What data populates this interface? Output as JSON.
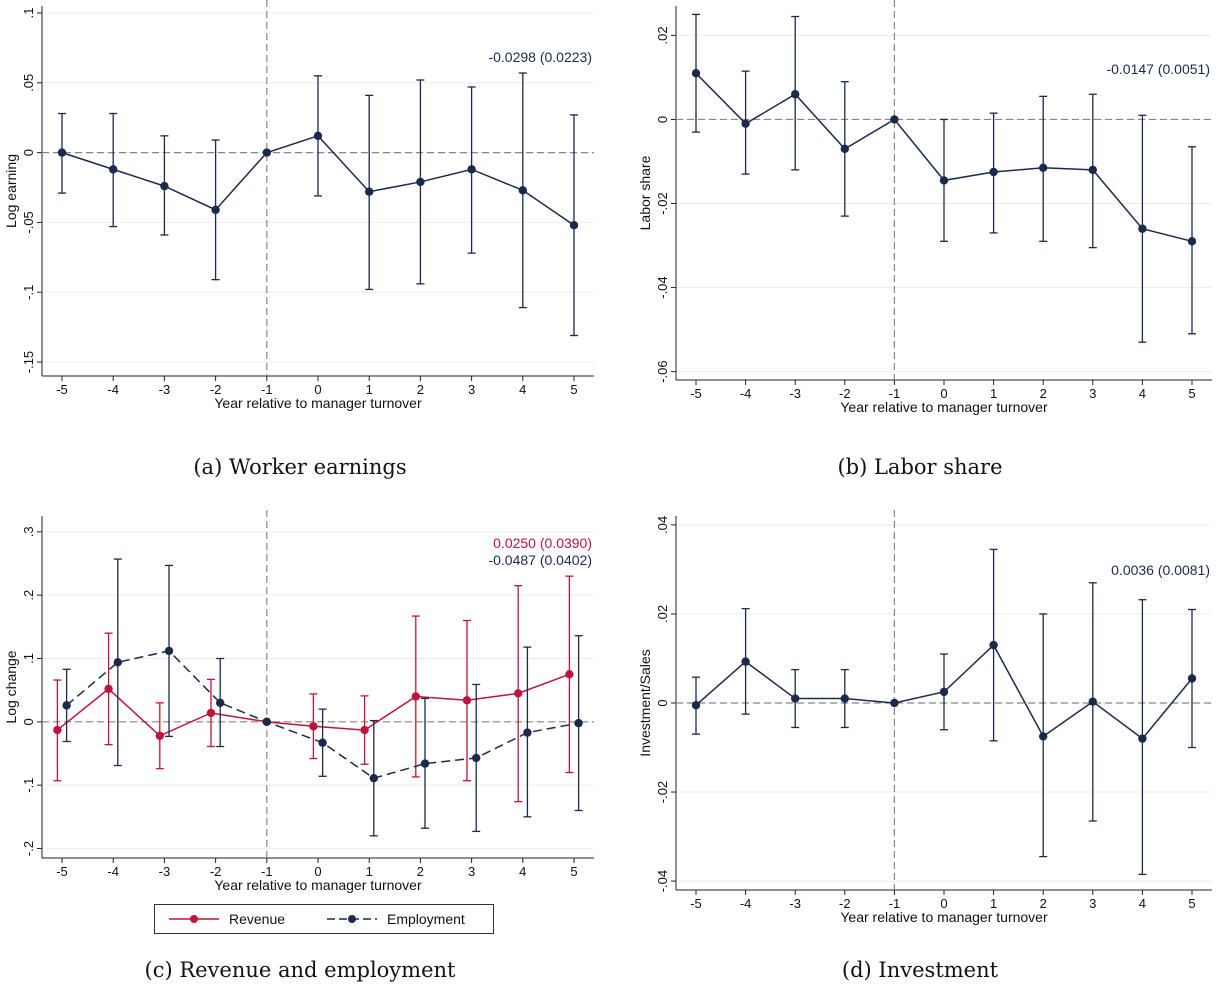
{
  "captions": [
    "(a) Worker earnings",
    "(b) Labor share",
    "(c) Revenue and employment",
    "(d) Investment"
  ],
  "colors": {
    "navy": "#1a2a4a",
    "red": "#c0143c",
    "ref": "#888888"
  },
  "legend": {
    "revenue": "Revenue",
    "employment": "Employment"
  },
  "chart_data": [
    {
      "type": "line",
      "title": "",
      "xlabel": "Year relative to manager turnover",
      "ylabel": "Log earning",
      "x": [
        -5,
        -4,
        -3,
        -2,
        -1,
        0,
        1,
        2,
        3,
        4,
        5
      ],
      "ylim": [
        -0.16,
        0.105
      ],
      "yticks": [
        0.1,
        0.05,
        0,
        -0.05,
        -0.1,
        -0.15
      ],
      "ytick_labels": [
        ".1",
        ".05",
        "0",
        "-.05",
        "-.1",
        "-.15"
      ],
      "xticks": [
        "-5",
        "-4",
        "-3",
        "-2",
        "-1",
        "0",
        "1",
        "2",
        "3",
        "4",
        "5"
      ],
      "vline": -1,
      "hline": 0,
      "annotations": [
        {
          "text": "-0.0298 (0.0223)",
          "color": "navy"
        }
      ],
      "series": [
        {
          "name": "",
          "color": "navy",
          "dash": false,
          "values": [
            0,
            -0.012,
            -0.024,
            -0.041,
            0,
            0.012,
            -0.028,
            -0.021,
            -0.012,
            -0.027,
            -0.052
          ],
          "ci_low": [
            -0.029,
            -0.053,
            -0.059,
            -0.091,
            0,
            -0.031,
            -0.098,
            -0.094,
            -0.072,
            -0.111,
            -0.131
          ],
          "ci_high": [
            0.028,
            0.028,
            0.012,
            0.009,
            0,
            0.055,
            0.041,
            0.052,
            0.047,
            0.057,
            0.027
          ]
        }
      ]
    },
    {
      "type": "line",
      "title": "",
      "xlabel": "Year relative to manager turnover",
      "ylabel": "Labor share",
      "x": [
        -5,
        -4,
        -3,
        -2,
        -1,
        0,
        1,
        2,
        3,
        4,
        5
      ],
      "ylim": [
        -0.062,
        0.027
      ],
      "yticks": [
        0.02,
        0,
        -0.02,
        -0.04,
        -0.06
      ],
      "ytick_labels": [
        ".02",
        "0",
        "-.02",
        "-.04",
        "-.06"
      ],
      "xticks": [
        "-5",
        "-4",
        "-3",
        "-2",
        "-1",
        "0",
        "1",
        "2",
        "3",
        "4",
        "5"
      ],
      "vline": -1,
      "hline": 0,
      "annotations": [
        {
          "text": "-0.0147 (0.0051)",
          "color": "navy"
        }
      ],
      "series": [
        {
          "name": "",
          "color": "navy",
          "dash": false,
          "values": [
            0.011,
            -0.001,
            0.006,
            -0.007,
            0,
            -0.0145,
            -0.0125,
            -0.0115,
            -0.012,
            -0.026,
            -0.029
          ],
          "ci_low": [
            -0.003,
            -0.013,
            -0.012,
            -0.023,
            0,
            -0.029,
            -0.027,
            -0.029,
            -0.0305,
            -0.053,
            -0.051
          ],
          "ci_high": [
            0.025,
            0.0115,
            0.0245,
            0.009,
            0,
            0,
            0.0015,
            0.0055,
            0.006,
            0.001,
            -0.0065
          ]
        }
      ]
    },
    {
      "type": "line",
      "title": "",
      "xlabel": "Year relative to manager turnover",
      "ylabel": "Log change",
      "x": [
        -5,
        -4,
        -3,
        -2,
        -1,
        0,
        1,
        2,
        3,
        4,
        5
      ],
      "ylim": [
        -0.215,
        0.325
      ],
      "yticks": [
        0.3,
        0.2,
        0.1,
        0,
        -0.1,
        -0.2
      ],
      "ytick_labels": [
        ".3",
        ".2",
        ".1",
        "0",
        "-.1",
        "-.2"
      ],
      "xticks": [
        "-5",
        "-4",
        "-3",
        "-2",
        "-1",
        "0",
        "1",
        "2",
        "3",
        "4",
        "5"
      ],
      "vline": -1,
      "hline": 0,
      "annotations": [
        {
          "text": "0.0250 (0.0390)",
          "color": "red"
        },
        {
          "text": "-0.0487 (0.0402)",
          "color": "navy"
        }
      ],
      "series": [
        {
          "name": "Revenue",
          "color": "red",
          "dash": false,
          "offset": -0.09,
          "values": [
            -0.013,
            0.052,
            -0.022,
            0.014,
            0,
            -0.007,
            -0.013,
            0.04,
            0.034,
            0.045,
            0.075
          ],
          "ci_low": [
            -0.093,
            -0.036,
            -0.074,
            -0.039,
            0,
            -0.058,
            -0.067,
            -0.087,
            -0.093,
            -0.126,
            -0.08
          ],
          "ci_high": [
            0.066,
            0.14,
            0.03,
            0.067,
            0,
            0.044,
            0.041,
            0.167,
            0.16,
            0.215,
            0.23
          ]
        },
        {
          "name": "Employment",
          "color": "navy",
          "dash": true,
          "offset": 0.09,
          "values": [
            0.026,
            0.094,
            0.112,
            0.03,
            0,
            -0.033,
            -0.089,
            -0.066,
            -0.057,
            -0.017,
            -0.002
          ],
          "ci_low": [
            -0.031,
            -0.069,
            -0.023,
            -0.039,
            0,
            -0.086,
            -0.18,
            -0.168,
            -0.173,
            -0.15,
            -0.14
          ],
          "ci_high": [
            0.083,
            0.257,
            0.247,
            0.1,
            0,
            0.02,
            0.002,
            0.037,
            0.059,
            0.118,
            0.136
          ]
        }
      ]
    },
    {
      "type": "line",
      "title": "",
      "xlabel": "Year relative to manager turnover",
      "ylabel": "Investment/Sales",
      "x": [
        -5,
        -4,
        -3,
        -2,
        -1,
        0,
        1,
        2,
        3,
        4,
        5
      ],
      "ylim": [
        -0.042,
        0.042
      ],
      "yticks": [
        0.04,
        0.02,
        0,
        -0.02,
        -0.04
      ],
      "ytick_labels": [
        ".04",
        ".02",
        "0",
        "-.02",
        "-.04"
      ],
      "xticks": [
        "-5",
        "-4",
        "-3",
        "-2",
        "-1",
        "0",
        "1",
        "2",
        "3",
        "4",
        "5"
      ],
      "vline": -1,
      "hline": 0,
      "annotations": [
        {
          "text": "0.0036 (0.0081)",
          "color": "navy"
        }
      ],
      "series": [
        {
          "name": "",
          "color": "navy",
          "dash": false,
          "values": [
            -0.0005,
            0.0093,
            0.001,
            0.001,
            0,
            0.0025,
            0.013,
            -0.0075,
            0.0003,
            -0.008,
            0.0055
          ],
          "ci_low": [
            -0.007,
            -0.0025,
            -0.0055,
            -0.0055,
            0,
            -0.006,
            -0.0085,
            -0.0345,
            -0.0265,
            -0.0385,
            -0.01
          ],
          "ci_high": [
            0.0058,
            0.0212,
            0.0075,
            0.0075,
            0,
            0.011,
            0.0345,
            0.02,
            0.027,
            0.0232,
            0.021
          ]
        }
      ]
    }
  ]
}
